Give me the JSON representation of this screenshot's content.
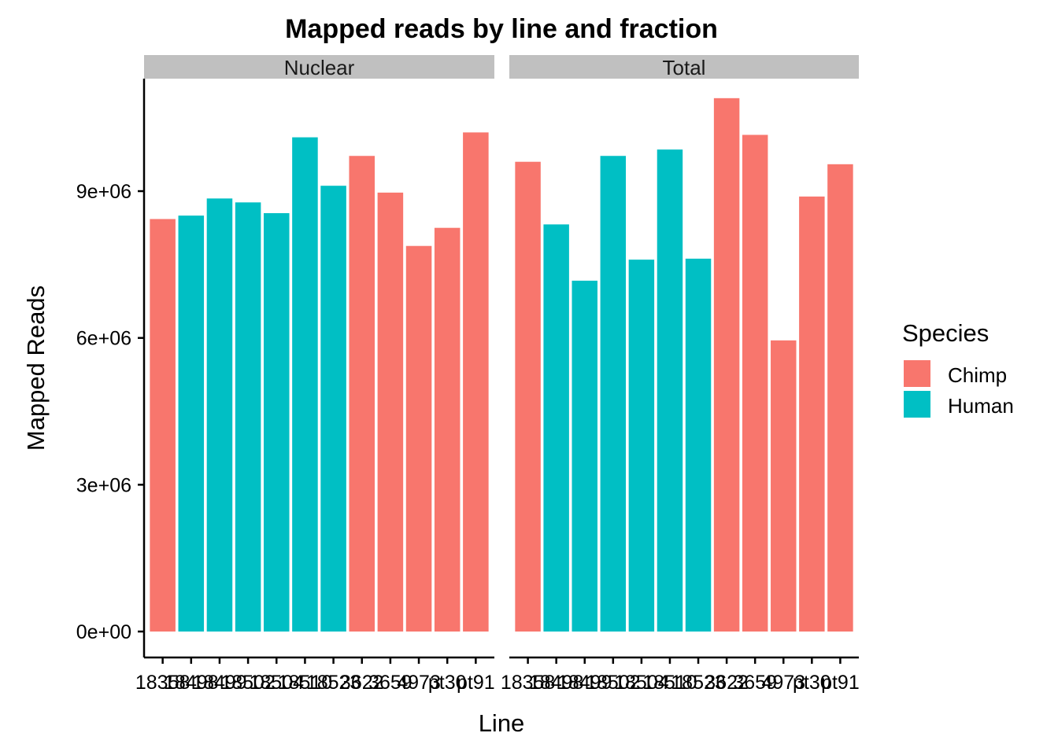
{
  "chart_data": {
    "type": "bar",
    "title": "Mapped reads by line and fraction",
    "xlabel": "Line",
    "ylabel": "Mapped Reads",
    "ylim": [
      0,
      11000000
    ],
    "yticks": [
      0,
      3000000,
      6000000,
      9000000
    ],
    "ytick_labels": [
      "0e+00",
      "3e+06",
      "6e+06",
      "9e+06"
    ],
    "grid": false,
    "legend": {
      "title": "Species",
      "placement": "right",
      "entries": [
        {
          "name": "Chimp",
          "color": "#F8766D"
        },
        {
          "name": "Human",
          "color": "#00BFC4"
        }
      ]
    },
    "categories": [
      "18358",
      "18498",
      "18499",
      "18502",
      "18504",
      "18510",
      "18523",
      "3622",
      "3659",
      "4973",
      "pt30",
      "pt91"
    ],
    "facets": [
      {
        "label": "Nuclear",
        "species": [
          "Chimp",
          "Human",
          "Human",
          "Human",
          "Human",
          "Human",
          "Human",
          "Chimp",
          "Chimp",
          "Chimp",
          "Chimp",
          "Chimp"
        ],
        "values": [
          8430000,
          8500000,
          8850000,
          8770000,
          8550000,
          10100000,
          9110000,
          9720000,
          8970000,
          7880000,
          8250000,
          10200000
        ]
      },
      {
        "label": "Total",
        "species": [
          "Chimp",
          "Human",
          "Human",
          "Human",
          "Human",
          "Human",
          "Human",
          "Chimp",
          "Chimp",
          "Chimp",
          "Chimp",
          "Chimp"
        ],
        "values": [
          9600000,
          8320000,
          7170000,
          9720000,
          7600000,
          9850000,
          7620000,
          10900000,
          10150000,
          5950000,
          8890000,
          9550000
        ]
      }
    ]
  }
}
